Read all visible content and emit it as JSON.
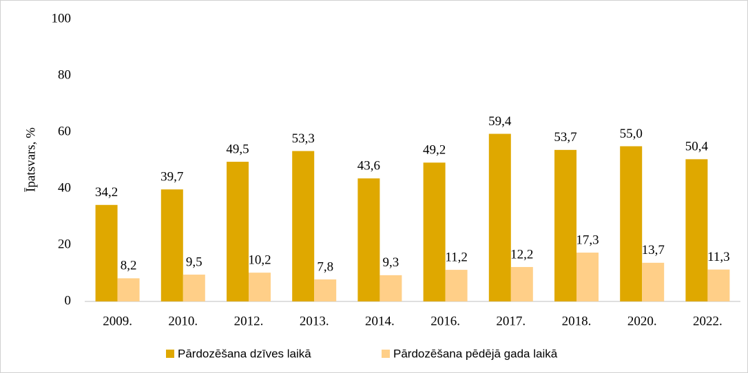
{
  "chart_data": {
    "type": "bar",
    "y_label": "Īpatsvars, %",
    "categories": [
      "2009.",
      "2010.",
      "2012.",
      "2013.",
      "2014.",
      "2016.",
      "2017.",
      "2018.",
      "2020.",
      "2022."
    ],
    "series": [
      {
        "name": "Pārdozēšana dzīves laikā",
        "color": "#dfa800",
        "values": [
          34.2,
          39.7,
          49.5,
          53.3,
          43.6,
          49.2,
          59.4,
          53.7,
          55.0,
          50.4
        ],
        "value_labels": [
          "34,2",
          "39,7",
          "49,5",
          "53,3",
          "43,6",
          "49,2",
          "59,4",
          "53,7",
          "55,0",
          "50,4"
        ]
      },
      {
        "name": "Pārdozēšana pēdējā gada laikā",
        "color": "#ffcf88",
        "values": [
          8.2,
          9.5,
          10.2,
          7.8,
          9.3,
          11.2,
          12.2,
          17.3,
          13.7,
          11.3
        ],
        "value_labels": [
          "8,2",
          "9,5",
          "10,2",
          "7,8",
          "9,3",
          "11,2",
          "12,2",
          "17,3",
          "13,7",
          "11,3"
        ]
      }
    ],
    "ylim": [
      0,
      100
    ],
    "yticks": [
      0,
      20,
      40,
      60,
      80,
      100
    ],
    "grid": false,
    "legend": "bottom"
  }
}
